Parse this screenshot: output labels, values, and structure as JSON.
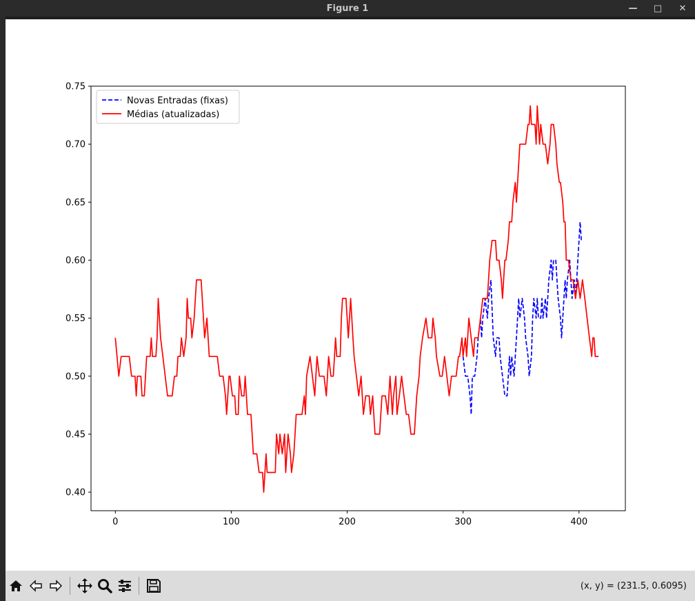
{
  "window": {
    "title": "Figure 1"
  },
  "toolbar": {
    "buttons": [
      "home-icon",
      "back-icon",
      "forward-icon",
      "pan-icon",
      "zoom-icon",
      "configure-subplots-icon",
      "save-icon"
    ],
    "coords_text": "(x, y) = (231.5, 0.6095)"
  },
  "chart_data": {
    "type": "line",
    "title": "",
    "xlabel": "",
    "ylabel": "",
    "xlim": [
      -21,
      440
    ],
    "ylim": [
      0.384,
      0.75
    ],
    "xticks": [
      0,
      100,
      200,
      300,
      400
    ],
    "yticks": [
      0.4,
      0.45,
      0.5,
      0.55,
      0.6,
      0.65,
      0.7,
      0.75
    ],
    "xtick_labels": [
      "0",
      "100",
      "200",
      "300",
      "400"
    ],
    "ytick_labels": [
      "0.40",
      "0.45",
      "0.50",
      "0.55",
      "0.60",
      "0.65",
      "0.70",
      "0.75"
    ],
    "grid": false,
    "legend_position": "top-left",
    "legend": [
      "Novas Entradas (fixas)",
      "Médias (atualizadas)"
    ],
    "series": [
      {
        "name": "Médias (atualizadas)",
        "color": "#ff0000",
        "style": "solid",
        "points": [
          [
            0,
            0.533
          ],
          [
            3,
            0.5
          ],
          [
            5,
            0.517
          ],
          [
            12,
            0.517
          ],
          [
            14,
            0.5
          ],
          [
            17,
            0.5
          ],
          [
            18,
            0.483
          ],
          [
            19,
            0.5
          ],
          [
            22,
            0.5
          ],
          [
            23,
            0.483
          ],
          [
            25,
            0.483
          ],
          [
            27,
            0.517
          ],
          [
            30,
            0.517
          ],
          [
            31,
            0.533
          ],
          [
            32,
            0.517
          ],
          [
            35,
            0.517
          ],
          [
            36,
            0.533
          ],
          [
            37,
            0.567
          ],
          [
            39,
            0.533
          ],
          [
            41,
            0.517
          ],
          [
            43,
            0.5
          ],
          [
            45,
            0.483
          ],
          [
            49,
            0.483
          ],
          [
            51,
            0.5
          ],
          [
            53,
            0.5
          ],
          [
            54,
            0.517
          ],
          [
            56,
            0.517
          ],
          [
            57,
            0.533
          ],
          [
            59,
            0.517
          ],
          [
            61,
            0.533
          ],
          [
            62,
            0.567
          ],
          [
            63,
            0.55
          ],
          [
            65,
            0.55
          ],
          [
            66,
            0.533
          ],
          [
            68,
            0.55
          ],
          [
            70,
            0.583
          ],
          [
            74,
            0.583
          ],
          [
            76,
            0.55
          ],
          [
            77,
            0.533
          ],
          [
            79,
            0.55
          ],
          [
            81,
            0.517
          ],
          [
            88,
            0.517
          ],
          [
            90,
            0.5
          ],
          [
            93,
            0.5
          ],
          [
            95,
            0.483
          ],
          [
            96,
            0.467
          ],
          [
            98,
            0.5
          ],
          [
            99,
            0.5
          ],
          [
            101,
            0.483
          ],
          [
            103,
            0.483
          ],
          [
            104,
            0.467
          ],
          [
            106,
            0.467
          ],
          [
            107,
            0.5
          ],
          [
            109,
            0.483
          ],
          [
            111,
            0.483
          ],
          [
            112,
            0.5
          ],
          [
            114,
            0.467
          ],
          [
            117,
            0.467
          ],
          [
            119,
            0.433
          ],
          [
            122,
            0.433
          ],
          [
            124,
            0.417
          ],
          [
            127,
            0.417
          ],
          [
            128,
            0.4
          ],
          [
            130,
            0.433
          ],
          [
            131,
            0.417
          ],
          [
            138,
            0.417
          ],
          [
            139,
            0.45
          ],
          [
            141,
            0.433
          ],
          [
            142,
            0.45
          ],
          [
            144,
            0.433
          ],
          [
            146,
            0.45
          ],
          [
            147,
            0.417
          ],
          [
            149,
            0.45
          ],
          [
            151,
            0.433
          ],
          [
            152,
            0.417
          ],
          [
            154,
            0.433
          ],
          [
            155,
            0.45
          ],
          [
            156,
            0.467
          ],
          [
            161,
            0.467
          ],
          [
            163,
            0.483
          ],
          [
            164,
            0.467
          ],
          [
            165,
            0.5
          ],
          [
            168,
            0.517
          ],
          [
            170,
            0.5
          ],
          [
            172,
            0.483
          ],
          [
            174,
            0.517
          ],
          [
            176,
            0.5
          ],
          [
            180,
            0.5
          ],
          [
            182,
            0.483
          ],
          [
            184,
            0.517
          ],
          [
            186,
            0.5
          ],
          [
            188,
            0.5
          ],
          [
            190,
            0.533
          ],
          [
            191,
            0.517
          ],
          [
            194,
            0.517
          ],
          [
            195,
            0.55
          ],
          [
            196,
            0.567
          ],
          [
            199,
            0.567
          ],
          [
            201,
            0.533
          ],
          [
            203,
            0.567
          ],
          [
            205,
            0.533
          ],
          [
            206,
            0.517
          ],
          [
            208,
            0.5
          ],
          [
            210,
            0.483
          ],
          [
            212,
            0.5
          ],
          [
            214,
            0.467
          ],
          [
            216,
            0.483
          ],
          [
            219,
            0.483
          ],
          [
            220,
            0.467
          ],
          [
            222,
            0.483
          ],
          [
            224,
            0.45
          ],
          [
            228,
            0.45
          ],
          [
            229,
            0.467
          ],
          [
            230,
            0.483
          ],
          [
            233,
            0.483
          ],
          [
            235,
            0.467
          ],
          [
            237,
            0.5
          ],
          [
            239,
            0.467
          ],
          [
            240,
            0.483
          ],
          [
            242,
            0.5
          ],
          [
            243,
            0.467
          ],
          [
            245,
            0.483
          ],
          [
            247,
            0.5
          ],
          [
            249,
            0.483
          ],
          [
            251,
            0.467
          ],
          [
            253,
            0.467
          ],
          [
            255,
            0.45
          ],
          [
            258,
            0.45
          ],
          [
            260,
            0.483
          ],
          [
            262,
            0.5
          ],
          [
            263,
            0.517
          ],
          [
            265,
            0.533
          ],
          [
            268,
            0.55
          ],
          [
            270,
            0.533
          ],
          [
            273,
            0.533
          ],
          [
            274,
            0.55
          ],
          [
            276,
            0.533
          ],
          [
            277,
            0.517
          ],
          [
            280,
            0.5
          ],
          [
            282,
            0.5
          ],
          [
            284,
            0.517
          ],
          [
            286,
            0.5
          ],
          [
            288,
            0.483
          ],
          [
            290,
            0.5
          ],
          [
            292,
            0.5
          ],
          [
            294,
            0.5
          ],
          [
            296,
            0.517
          ],
          [
            297,
            0.517
          ],
          [
            299,
            0.533
          ],
          [
            300,
            0.517
          ],
          [
            302,
            0.533
          ],
          [
            303,
            0.517
          ],
          [
            305,
            0.55
          ],
          [
            307,
            0.533
          ],
          [
            309,
            0.517
          ],
          [
            310,
            0.533
          ],
          [
            313,
            0.533
          ],
          [
            315,
            0.55
          ],
          [
            317,
            0.567
          ],
          [
            321,
            0.567
          ],
          [
            323,
            0.6
          ],
          [
            325,
            0.617
          ],
          [
            328,
            0.617
          ],
          [
            329,
            0.6
          ],
          [
            331,
            0.6
          ],
          [
            333,
            0.583
          ],
          [
            334,
            0.567
          ],
          [
            336,
            0.6
          ],
          [
            337,
            0.6
          ],
          [
            339,
            0.617
          ],
          [
            340,
            0.633
          ],
          [
            342,
            0.633
          ],
          [
            343,
            0.65
          ],
          [
            345,
            0.667
          ],
          [
            346,
            0.65
          ],
          [
            347,
            0.667
          ],
          [
            349,
            0.7
          ],
          [
            354,
            0.7
          ],
          [
            356,
            0.717
          ],
          [
            357,
            0.717
          ],
          [
            358,
            0.733
          ],
          [
            359,
            0.717
          ],
          [
            362,
            0.717
          ],
          [
            363,
            0.7
          ],
          [
            364,
            0.733
          ],
          [
            366,
            0.7
          ],
          [
            367,
            0.717
          ],
          [
            369,
            0.7
          ],
          [
            371,
            0.7
          ],
          [
            373,
            0.683
          ],
          [
            375,
            0.7
          ],
          [
            376,
            0.717
          ],
          [
            378,
            0.717
          ],
          [
            380,
            0.7
          ],
          [
            381,
            0.683
          ],
          [
            383,
            0.667
          ],
          [
            384,
            0.667
          ],
          [
            386,
            0.65
          ],
          [
            387,
            0.633
          ],
          [
            388,
            0.633
          ],
          [
            389,
            0.6
          ],
          [
            391,
            0.6
          ],
          [
            393,
            0.583
          ],
          [
            395,
            0.583
          ],
          [
            397,
            0.567
          ],
          [
            399,
            0.583
          ],
          [
            401,
            0.567
          ],
          [
            403,
            0.583
          ],
          [
            405,
            0.567
          ],
          [
            407,
            0.55
          ],
          [
            409,
            0.533
          ],
          [
            411,
            0.517
          ],
          [
            412,
            0.533
          ],
          [
            413,
            0.533
          ],
          [
            414,
            0.517
          ],
          [
            417,
            0.517
          ]
        ]
      },
      {
        "name": "Novas Entradas (fixas)",
        "color": "#0000ff",
        "style": "dashed",
        "points": [
          [
            300,
            0.517
          ],
          [
            302,
            0.5
          ],
          [
            304,
            0.5
          ],
          [
            306,
            0.483
          ],
          [
            307,
            0.467
          ],
          [
            308,
            0.5
          ],
          [
            310,
            0.5
          ],
          [
            312,
            0.517
          ],
          [
            313,
            0.533
          ],
          [
            315,
            0.55
          ],
          [
            316,
            0.533
          ],
          [
            317,
            0.55
          ],
          [
            319,
            0.567
          ],
          [
            321,
            0.55
          ],
          [
            322,
            0.567
          ],
          [
            324,
            0.583
          ],
          [
            326,
            0.533
          ],
          [
            328,
            0.517
          ],
          [
            329,
            0.533
          ],
          [
            331,
            0.533
          ],
          [
            332,
            0.517
          ],
          [
            334,
            0.5
          ],
          [
            336,
            0.483
          ],
          [
            338,
            0.483
          ],
          [
            340,
            0.517
          ],
          [
            341,
            0.5
          ],
          [
            342,
            0.517
          ],
          [
            344,
            0.5
          ],
          [
            346,
            0.533
          ],
          [
            348,
            0.567
          ],
          [
            349,
            0.55
          ],
          [
            351,
            0.567
          ],
          [
            353,
            0.55
          ],
          [
            354,
            0.533
          ],
          [
            356,
            0.517
          ],
          [
            357,
            0.5
          ],
          [
            359,
            0.517
          ],
          [
            360,
            0.55
          ],
          [
            361,
            0.567
          ],
          [
            363,
            0.55
          ],
          [
            364,
            0.567
          ],
          [
            365,
            0.55
          ],
          [
            367,
            0.55
          ],
          [
            368,
            0.567
          ],
          [
            369,
            0.55
          ],
          [
            371,
            0.567
          ],
          [
            372,
            0.55
          ],
          [
            373,
            0.567
          ],
          [
            374,
            0.583
          ],
          [
            376,
            0.6
          ],
          [
            377,
            0.583
          ],
          [
            378,
            0.6
          ],
          [
            380,
            0.6
          ],
          [
            381,
            0.583
          ],
          [
            382,
            0.567
          ],
          [
            384,
            0.55
          ],
          [
            385,
            0.533
          ],
          [
            386,
            0.55
          ],
          [
            388,
            0.583
          ],
          [
            389,
            0.567
          ],
          [
            390,
            0.583
          ],
          [
            392,
            0.6
          ],
          [
            393,
            0.583
          ],
          [
            394,
            0.567
          ],
          [
            396,
            0.583
          ],
          [
            397,
            0.567
          ],
          [
            398,
            0.583
          ],
          [
            400,
            0.617
          ],
          [
            401,
            0.633
          ],
          [
            402,
            0.617
          ]
        ]
      }
    ]
  }
}
